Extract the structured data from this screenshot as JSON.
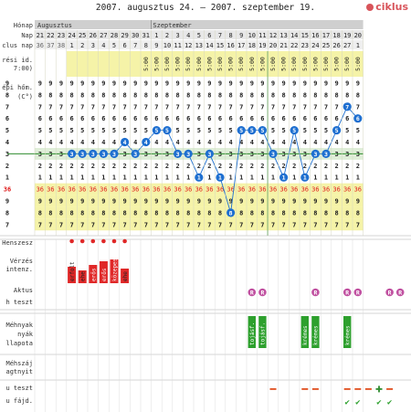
{
  "header": {
    "title": "2007. augusztus 24. – 2007. szeptember 19.",
    "logo_text": "ciklus"
  },
  "months": [
    "Augusztus",
    "Szeptember"
  ],
  "row_labels": {
    "month": "Hónap",
    "day": "Nap",
    "cycle_day": "clus nap",
    "measure_time_1": "rési id.",
    "measure_time_2": "7:00)",
    "temp_1": "épi hőm.",
    "temp_2": "(C°)",
    "mood": "Henszesz",
    "bleeding_1": "Vérzés",
    "bleeding_2": "intenz.",
    "intercourse": "Aktus",
    "test": "h teszt",
    "cervix_1": "Méhnyak",
    "cervix_2": "nyák",
    "cervix_3": "llapota",
    "cervix_pos_1": "Méhszáj",
    "cervix_pos_2": "agtnyit",
    "ovu_test": "u teszt",
    "preg_test": "u fájd."
  },
  "days": [
    21,
    22,
    23,
    24,
    25,
    26,
    27,
    28,
    29,
    30,
    31,
    1,
    2,
    3,
    4,
    5,
    6,
    7,
    8,
    9,
    10,
    11,
    12,
    13,
    14,
    15,
    16,
    17,
    18,
    19,
    20
  ],
  "cycle_days": [
    36,
    37,
    38,
    1,
    2,
    3,
    4,
    5,
    6,
    7,
    8,
    9,
    10,
    11,
    12,
    13,
    14,
    15,
    16,
    17,
    18,
    19,
    20,
    21,
    22,
    23,
    24,
    25,
    26,
    27,
    1
  ],
  "time_text": "5:00",
  "temp_levels": [
    "9",
    "8",
    "7",
    "6",
    "5",
    "4",
    "3",
    "2",
    "1",
    "36",
    "9",
    "8",
    "7"
  ],
  "temp_values": [
    null,
    null,
    null,
    3,
    3,
    3,
    3,
    3,
    4,
    3,
    4,
    5,
    5,
    3,
    3,
    1,
    3,
    1,
    -2,
    5,
    5,
    5,
    3,
    1,
    5,
    1,
    3,
    3,
    5,
    7,
    6
  ],
  "bleeding": [
    "",
    "",
    "",
    "erfolt",
    "ehe",
    "erős",
    "erős",
    "közepes",
    "ehe",
    "",
    "",
    "",
    "",
    "",
    "",
    "",
    "",
    "",
    "",
    "",
    "",
    "",
    "",
    "",
    "",
    "",
    "",
    "",
    "",
    "",
    ""
  ],
  "bleeding_level": [
    0,
    0,
    0,
    0.45,
    0.35,
    0.5,
    0.6,
    0.65,
    0.4,
    0,
    0,
    0,
    0,
    0,
    0,
    0,
    0,
    0,
    0,
    0,
    0,
    0,
    0,
    0,
    0,
    0,
    0,
    0,
    0,
    0,
    0
  ],
  "intercourse_label": "R",
  "intercourse_days": [
    11,
    12,
    17,
    20,
    21,
    24,
    25,
    27
  ],
  "mucus": [
    "",
    "",
    "",
    "",
    "",
    "",
    "",
    "",
    "",
    "",
    "",
    "",
    "",
    "",
    "",
    "",
    "",
    "",
    "",
    "",
    "tojásf.",
    "tojásf.",
    "",
    "",
    "",
    "krémes",
    "krémes",
    "",
    "",
    "krémes",
    ""
  ],
  "dash_days": [
    13,
    16,
    17,
    20,
    21,
    22,
    24
  ],
  "plus_days": [
    23
  ],
  "check_days": [
    20,
    21,
    23,
    24
  ],
  "colors": {
    "yellow": "#f5f3a8",
    "header": "#cfcfcf",
    "bleed": "#e02828",
    "temp": "#1e6fd0",
    "red_text": "#e02020",
    "green": "#2e8b2e",
    "mucus": "#2da02d",
    "intercourse": "#c050a0"
  }
}
